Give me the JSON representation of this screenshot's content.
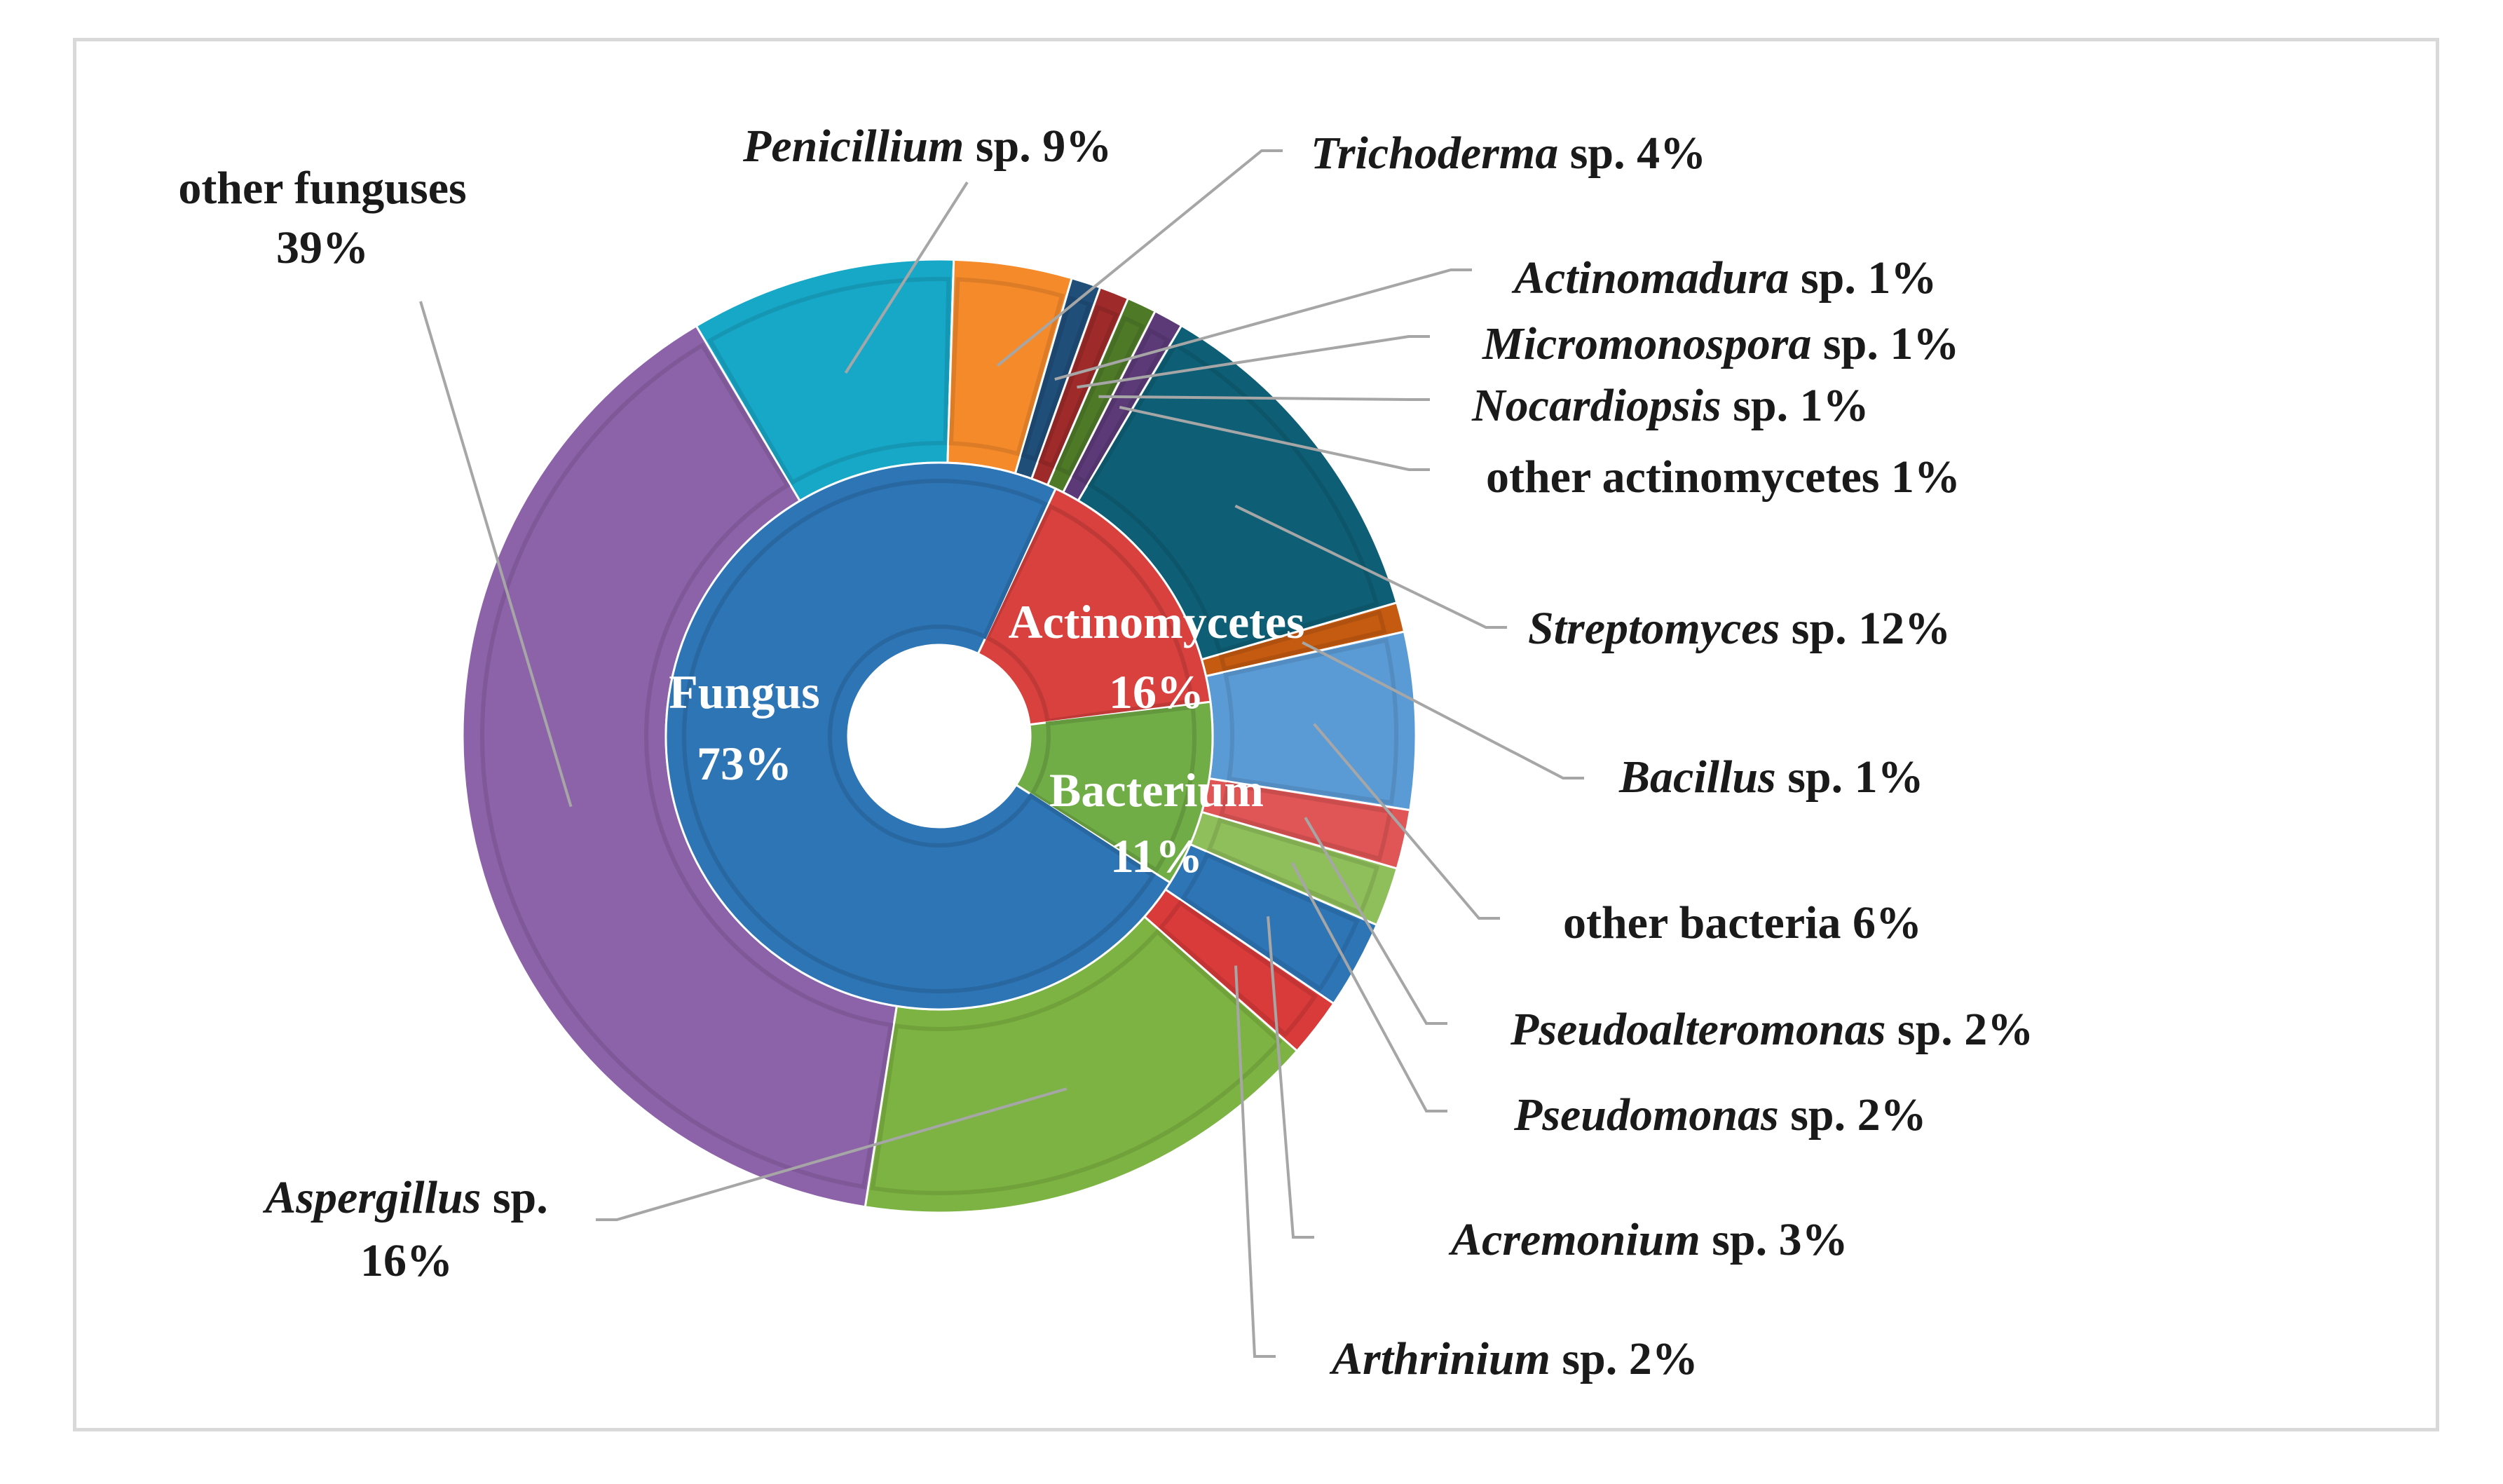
{
  "chart_data": {
    "type": "pie",
    "variant": "doughnut",
    "title": "",
    "colors": {
      "fungus_inner": "#2e75b6",
      "actinomycetes_inner": "#d9413f",
      "bacterium_inner": "#70ad47"
    },
    "inner_ring": [
      {
        "label": "Fungus",
        "value": 73,
        "value_text": "73%",
        "color": "#2e75b6"
      },
      {
        "label": "Actinomycetes",
        "value": 16,
        "value_text": "16%",
        "color": "#d9413f"
      },
      {
        "label": "Bacterium",
        "value": 11,
        "value_text": "11%",
        "color": "#70ad47"
      }
    ],
    "outer_ring": [
      {
        "name": "Penicillium",
        "suffix": " sp. 9%",
        "value": 9,
        "color": "#17a8c8"
      },
      {
        "name": "Trichoderma",
        "suffix": " sp. 4%",
        "value": 4,
        "color": "#f58a2b"
      },
      {
        "name": "Actinomadura",
        "suffix": " sp. 1%",
        "value": 1,
        "color": "#1f4e79"
      },
      {
        "name": "Micromonospora",
        "suffix": " sp. 1%",
        "value": 1,
        "color": "#9e2a2a"
      },
      {
        "name": "Nocardiopsis",
        "suffix": " sp. 1%",
        "value": 1,
        "color": "#4e7a28"
      },
      {
        "name": "",
        "suffix": "other actinomycetes 1%",
        "value": 1,
        "color": "#5c3a78"
      },
      {
        "name": "Streptomyces",
        "suffix": " sp. 12%",
        "value": 12,
        "color": "#0e5f76"
      },
      {
        "name": "Bacillus",
        "suffix": " sp. 1%",
        "value": 1,
        "color": "#c55a11"
      },
      {
        "name": "",
        "suffix": "other bacteria 6%",
        "value": 6,
        "color": "#5b9bd5"
      },
      {
        "name": "Pseudoalteromonas",
        "suffix": " sp. 2%",
        "value": 2,
        "color": "#e05555"
      },
      {
        "name": "Pseudomonas",
        "suffix": " sp. 2%",
        "value": 2,
        "color": "#8fbf5a"
      },
      {
        "name": "Acremonium",
        "suffix": " sp. 3%",
        "value": 3,
        "color": "#2e75b6"
      },
      {
        "name": "Arthrinium",
        "suffix": " sp. 2%",
        "value": 2,
        "color": "#d93a3a"
      },
      {
        "name": "Aspergillus",
        "suffix": " sp.",
        "suffix2": "16%",
        "value": 16,
        "color": "#7cb342"
      },
      {
        "name": "",
        "suffix": "other funguses",
        "suffix2": "39%",
        "value": 39,
        "color": "#8c62a8"
      }
    ]
  }
}
